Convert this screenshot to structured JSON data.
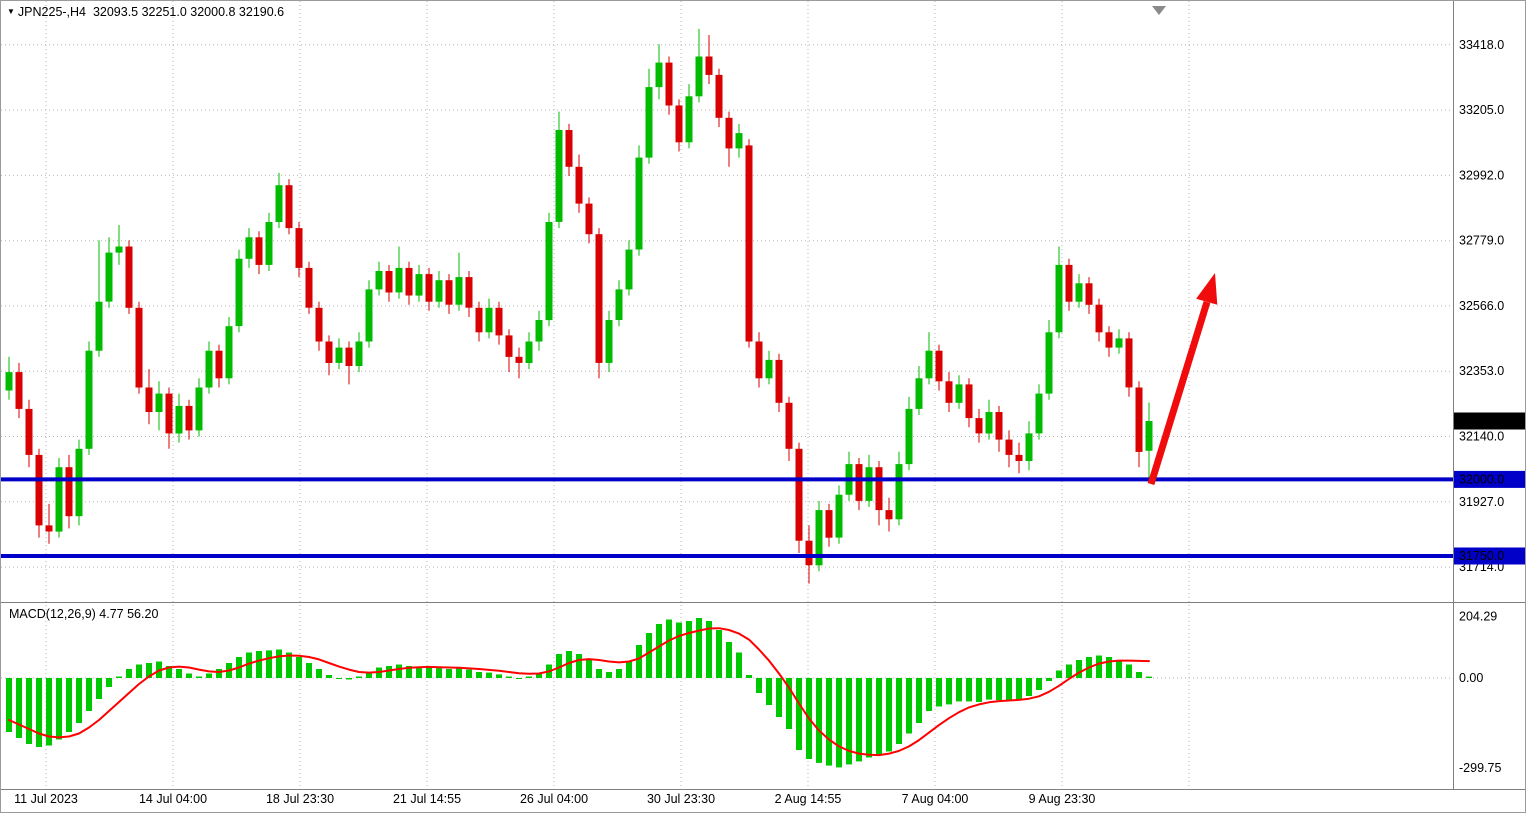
{
  "header": {
    "marker": "▼",
    "symbol_line": "JPN225-,H4  32093.5 32251.0 32000.8 32190.6"
  },
  "indicator": {
    "name": "MACD",
    "params": "12,26,9",
    "macd_value": 4.77,
    "signal_value": 56.2,
    "label": "MACD(12,26,9) 4.77 56.20"
  },
  "colors": {
    "bull": "#00BB00",
    "bear": "#D80000",
    "macd_hist": "#00C800",
    "signal_line": "#FF0000",
    "level_line": "#0000C8",
    "level_badge_bg": "#0000C8",
    "current_badge_bg": "#000000",
    "badge_text": "#FFFFFF",
    "arrow": "#F00C0C",
    "grid": "#B6B6B6",
    "axis_text": "#000000",
    "shift_marker": "#8a8a8a"
  },
  "time_axis": {
    "labels": [
      "11 Jul 2023",
      "14 Jul 04:00",
      "18 Jul 23:30",
      "21 Jul 14:55",
      "26 Jul 04:00",
      "30 Jul 23:30",
      "2 Aug 14:55",
      "7 Aug 04:00",
      "9 Aug 23:30"
    ]
  },
  "chart_data": [
    {
      "type": "candlestick",
      "title": "JPN225-,H4",
      "symbol": "JPN225-",
      "timeframe": "H4",
      "current_bar": {
        "open": 32093.5,
        "high": 32251.0,
        "low": 32000.8,
        "close": 32190.6
      },
      "current_price": 32190.6,
      "levels": [
        32000.0,
        31750.0
      ],
      "y_ticks": [
        33418.0,
        33205.0,
        32992.0,
        32779.0,
        32566.0,
        32353.0,
        32140.0,
        31927.0,
        31714.0
      ],
      "annotations": [
        "red-up-arrow-projection"
      ],
      "ohlc": [
        [
          32290,
          32400,
          32260,
          32350
        ],
        [
          32350,
          32380,
          32200,
          32230
        ],
        [
          32230,
          32260,
          32040,
          32080
        ],
        [
          32080,
          32100,
          31810,
          31850
        ],
        [
          31850,
          31920,
          31790,
          31830
        ],
        [
          31830,
          32070,
          31810,
          32040
        ],
        [
          32040,
          32080,
          31840,
          31880
        ],
        [
          31880,
          32130,
          31850,
          32100
        ],
        [
          32100,
          32450,
          32080,
          32420
        ],
        [
          32420,
          32780,
          32400,
          32580
        ],
        [
          32580,
          32790,
          32560,
          32740
        ],
        [
          32740,
          32830,
          32700,
          32760
        ],
        [
          32760,
          32780,
          32540,
          32560
        ],
        [
          32560,
          32580,
          32280,
          32300
        ],
        [
          32300,
          32360,
          32180,
          32220
        ],
        [
          32220,
          32320,
          32160,
          32280
        ],
        [
          32280,
          32300,
          32100,
          32150
        ],
        [
          32150,
          32280,
          32120,
          32240
        ],
        [
          32240,
          32260,
          32130,
          32160
        ],
        [
          32160,
          32330,
          32140,
          32300
        ],
        [
          32300,
          32450,
          32280,
          32420
        ],
        [
          32420,
          32440,
          32300,
          32330
        ],
        [
          32330,
          32530,
          32310,
          32500
        ],
        [
          32500,
          32750,
          32480,
          32720
        ],
        [
          32720,
          32820,
          32690,
          32790
        ],
        [
          32790,
          32810,
          32670,
          32700
        ],
        [
          32700,
          32870,
          32680,
          32840
        ],
        [
          32840,
          33000,
          32820,
          32960
        ],
        [
          32960,
          32980,
          32800,
          32820
        ],
        [
          32820,
          32840,
          32660,
          32690
        ],
        [
          32690,
          32710,
          32540,
          32560
        ],
        [
          32560,
          32580,
          32420,
          32450
        ],
        [
          32450,
          32470,
          32340,
          32380
        ],
        [
          32380,
          32460,
          32360,
          32430
        ],
        [
          32430,
          32450,
          32310,
          32370
        ],
        [
          32370,
          32480,
          32350,
          32450
        ],
        [
          32450,
          32650,
          32430,
          32620
        ],
        [
          32620,
          32710,
          32600,
          32680
        ],
        [
          32680,
          32700,
          32580,
          32610
        ],
        [
          32610,
          32760,
          32590,
          32690
        ],
        [
          32690,
          32710,
          32570,
          32600
        ],
        [
          32600,
          32700,
          32580,
          32670
        ],
        [
          32670,
          32690,
          32550,
          32580
        ],
        [
          32580,
          32680,
          32560,
          32650
        ],
        [
          32650,
          32670,
          32540,
          32570
        ],
        [
          32570,
          32740,
          32550,
          32660
        ],
        [
          32660,
          32680,
          32530,
          32560
        ],
        [
          32560,
          32580,
          32450,
          32480
        ],
        [
          32480,
          32590,
          32460,
          32560
        ],
        [
          32560,
          32580,
          32440,
          32470
        ],
        [
          32470,
          32490,
          32350,
          32400
        ],
        [
          32400,
          32430,
          32330,
          32380
        ],
        [
          32380,
          32480,
          32360,
          32450
        ],
        [
          32450,
          32550,
          32420,
          32520
        ],
        [
          32520,
          32870,
          32500,
          32840
        ],
        [
          32840,
          33200,
          32820,
          33140
        ],
        [
          33140,
          33160,
          32990,
          33020
        ],
        [
          33020,
          33060,
          32870,
          32900
        ],
        [
          32900,
          32920,
          32770,
          32800
        ],
        [
          32800,
          32820,
          32330,
          32380
        ],
        [
          32380,
          32550,
          32350,
          32520
        ],
        [
          32520,
          32650,
          32500,
          32620
        ],
        [
          32620,
          32780,
          32600,
          32750
        ],
        [
          32750,
          33090,
          32730,
          33050
        ],
        [
          33050,
          33340,
          33030,
          33280
        ],
        [
          33280,
          33420,
          33240,
          33360
        ],
        [
          33360,
          33380,
          33190,
          33220
        ],
        [
          33220,
          33240,
          33070,
          33100
        ],
        [
          33100,
          33290,
          33080,
          33250
        ],
        [
          33250,
          33470,
          33230,
          33380
        ],
        [
          33380,
          33450,
          33290,
          33320
        ],
        [
          33320,
          33340,
          33150,
          33180
        ],
        [
          33180,
          33200,
          33020,
          33080
        ],
        [
          33080,
          33160,
          33050,
          33130
        ],
        [
          33090,
          33110,
          32430,
          32450
        ],
        [
          32450,
          32480,
          32300,
          32330
        ],
        [
          32330,
          32420,
          32310,
          32390
        ],
        [
          32390,
          32410,
          32220,
          32250
        ],
        [
          32250,
          32270,
          32060,
          32100
        ],
        [
          32100,
          32120,
          31760,
          31800
        ],
        [
          31800,
          31850,
          31660,
          31720
        ],
        [
          31720,
          31930,
          31700,
          31900
        ],
        [
          31900,
          31920,
          31780,
          31810
        ],
        [
          31810,
          31980,
          31790,
          31950
        ],
        [
          31950,
          32090,
          31930,
          32050
        ],
        [
          32050,
          32070,
          31900,
          31930
        ],
        [
          31930,
          32080,
          31910,
          32040
        ],
        [
          32040,
          32060,
          31850,
          31900
        ],
        [
          31900,
          31940,
          31830,
          31870
        ],
        [
          31870,
          32090,
          31850,
          32050
        ],
        [
          32050,
          32270,
          32030,
          32230
        ],
        [
          32230,
          32370,
          32210,
          32330
        ],
        [
          32330,
          32480,
          32310,
          32420
        ],
        [
          32420,
          32440,
          32290,
          32320
        ],
        [
          32320,
          32350,
          32220,
          32250
        ],
        [
          32250,
          32340,
          32230,
          32310
        ],
        [
          32310,
          32330,
          32170,
          32200
        ],
        [
          32200,
          32230,
          32120,
          32150
        ],
        [
          32150,
          32260,
          32130,
          32220
        ],
        [
          32220,
          32240,
          32090,
          32130
        ],
        [
          32130,
          32160,
          32040,
          32080
        ],
        [
          32080,
          32120,
          32020,
          32060
        ],
        [
          32060,
          32190,
          32030,
          32150
        ],
        [
          32150,
          32310,
          32130,
          32280
        ],
        [
          32280,
          32520,
          32260,
          32480
        ],
        [
          32480,
          32760,
          32460,
          32700
        ],
        [
          32700,
          32720,
          32550,
          32580
        ],
        [
          32580,
          32670,
          32560,
          32640
        ],
        [
          32640,
          32660,
          32540,
          32570
        ],
        [
          32570,
          32590,
          32450,
          32480
        ],
        [
          32480,
          32500,
          32400,
          32430
        ],
        [
          32430,
          32490,
          32410,
          32460
        ],
        [
          32460,
          32480,
          32270,
          32300
        ],
        [
          32300,
          32320,
          32040,
          32090
        ],
        [
          32093.5,
          32251.0,
          32000.8,
          32190.6
        ]
      ]
    },
    {
      "type": "bar",
      "title": "MACD(12,26,9)",
      "current_values": {
        "macd": 4.77,
        "signal": 56.2
      },
      "y_ticks": [
        204.29,
        0.0,
        -299.75
      ],
      "histogram": [
        -180,
        -200,
        -220,
        -230,
        -225,
        -205,
        -180,
        -150,
        -110,
        -70,
        -30,
        5,
        30,
        45,
        50,
        55,
        40,
        30,
        15,
        5,
        15,
        30,
        50,
        70,
        85,
        90,
        92,
        95,
        85,
        70,
        50,
        30,
        10,
        0,
        -5,
        5,
        20,
        35,
        40,
        45,
        40,
        38,
        35,
        33,
        30,
        32,
        28,
        20,
        18,
        12,
        5,
        0,
        5,
        15,
        45,
        80,
        90,
        80,
        60,
        30,
        20,
        30,
        55,
        110,
        150,
        180,
        195,
        185,
        190,
        200,
        190,
        160,
        120,
        85,
        10,
        -50,
        -90,
        -130,
        -170,
        -240,
        -270,
        -283,
        -292,
        -298,
        -288,
        -278,
        -265,
        -258,
        -245,
        -220,
        -185,
        -150,
        -110,
        -95,
        -88,
        -78,
        -78,
        -80,
        -72,
        -74,
        -76,
        -73,
        -60,
        -40,
        -10,
        25,
        45,
        60,
        70,
        75,
        70,
        60,
        45,
        20,
        4.77
      ],
      "signal_line": [
        -140,
        -155,
        -170,
        -185,
        -195,
        -198,
        -195,
        -185,
        -165,
        -140,
        -110,
        -80,
        -50,
        -20,
        5,
        25,
        35,
        38,
        35,
        28,
        22,
        20,
        25,
        35,
        48,
        58,
        66,
        72,
        75,
        74,
        70,
        62,
        50,
        38,
        28,
        20,
        18,
        20,
        25,
        30,
        34,
        36,
        37,
        36,
        35,
        34,
        32,
        30,
        27,
        24,
        20,
        16,
        14,
        15,
        22,
        35,
        50,
        60,
        63,
        60,
        55,
        52,
        55,
        65,
        85,
        105,
        125,
        140,
        150,
        158,
        165,
        166,
        160,
        148,
        128,
        95,
        58,
        15,
        -32,
        -85,
        -135,
        -175,
        -205,
        -228,
        -243,
        -252,
        -256,
        -257,
        -252,
        -243,
        -228,
        -207,
        -182,
        -157,
        -134,
        -114,
        -98,
        -88,
        -81,
        -77,
        -75,
        -73,
        -69,
        -61,
        -46,
        -26,
        -3,
        18,
        35,
        48,
        55,
        58,
        58,
        57,
        56.2
      ]
    }
  ]
}
